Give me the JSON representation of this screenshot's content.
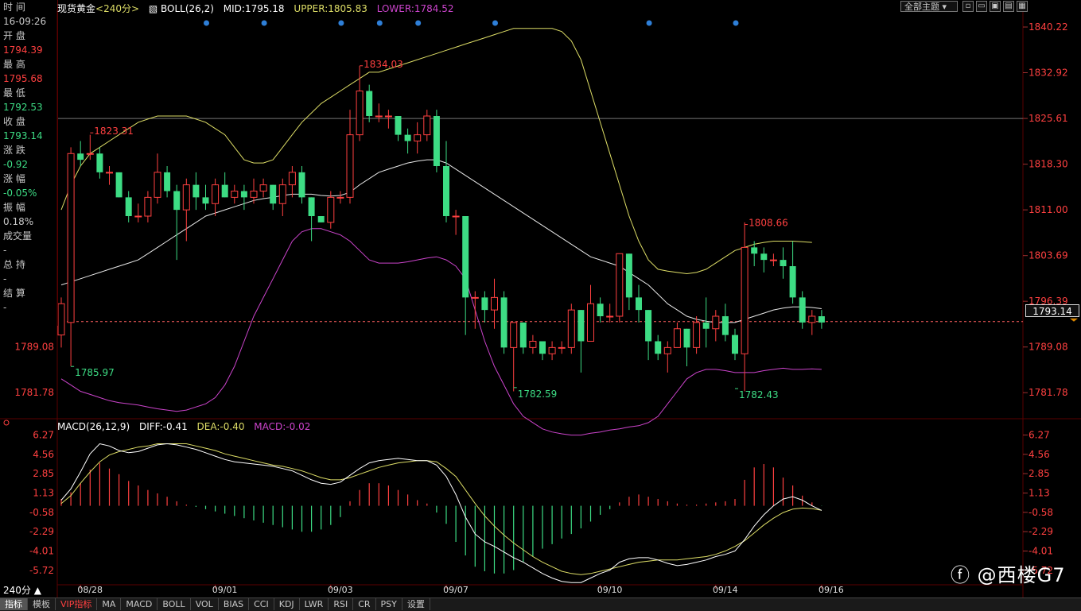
{
  "panel_labels": {
    "time_label": "时 间",
    "time_value": "16-09:26",
    "open_label": "开 盘",
    "open_value": "1794.39",
    "high_label": "最 高",
    "high_value": "1795.68",
    "low_label": "最 低",
    "low_value": "1792.53",
    "close_label": "收 盘",
    "close_value": "1793.14",
    "change_label": "涨 跌",
    "change_value": "-0.92",
    "pct_label": "涨 幅",
    "pct_value": "-0.05%",
    "amp_label": "振 幅",
    "amp_value": "0.18%",
    "volume_label": "成交量",
    "volume_value": "-",
    "oi_label": "总 持",
    "oi_value": "-",
    "settle_label": "结 算",
    "settle_value": "-"
  },
  "header": {
    "symbol": "现货黄金",
    "period": "<240分>",
    "boll_label": "BOLL(26,2)",
    "mid": "MID:1795.18",
    "upper": "UPPER:1805.83",
    "lower": "LOWER:1784.52",
    "theme_button": "全部主题"
  },
  "macd_header": {
    "name": "MACD(26,12,9)",
    "diff": "DIFF:-0.41",
    "dea": "DEA:-0.40",
    "macd": "MACD:-0.02"
  },
  "current_price_box": "1793.14",
  "period_selector": "240分",
  "tabs": [
    "指标",
    "模板",
    "VIP指标",
    "MA",
    "MACD",
    "BOLL",
    "VOL",
    "BIAS",
    "CCI",
    "KDJ",
    "LWR",
    "RSI",
    "CR",
    "PSY",
    "设置"
  ],
  "watermark": "@西楼G7",
  "colors": {
    "up": "#ff4040",
    "down": "#3ddc84",
    "mid": "#e8e8e8",
    "upper": "#dddd66",
    "lower": "#cc44cc",
    "dea": "#dddd66",
    "diff": "#ffffff",
    "macd_pos": "#ff4040",
    "macd_neg": "#3ddc84"
  },
  "chart_data": [
    {
      "type": "candlestick",
      "y_ticks": [
        "1840.22",
        "1832.92",
        "1825.61",
        "1818.30",
        "1811.00",
        "1803.69",
        "1796.39",
        "1789.08",
        "1781.78"
      ],
      "ylim": [
        1778,
        1842
      ],
      "x_ticks": [
        "08/28",
        "09/01",
        "09/03",
        "09/07",
        "09/10",
        "09/14",
        "09/16"
      ],
      "x_tick_index": [
        2,
        16,
        28,
        40,
        56,
        68,
        79
      ],
      "price_labels": [
        {
          "text": "1823.31",
          "index": 3,
          "value": 1823.31,
          "kind": "high"
        },
        {
          "text": "1785.97",
          "index": 1,
          "value": 1785.97,
          "kind": "low"
        },
        {
          "text": "1834.03",
          "index": 31,
          "value": 1834.03,
          "kind": "high"
        },
        {
          "text": "1782.59",
          "index": 47,
          "value": 1782.59,
          "kind": "low"
        },
        {
          "text": "1808.66",
          "index": 71,
          "value": 1808.66,
          "kind": "high"
        },
        {
          "text": "1782.43",
          "index": 70,
          "value": 1782.43,
          "kind": "low"
        }
      ],
      "reference_price": 1825.61,
      "last_price": 1793.14,
      "signal_dots_index": [
        15,
        21,
        29,
        33,
        37,
        45,
        61,
        70
      ],
      "candles": [
        [
          1791,
          1796,
          1789,
          1797
        ],
        [
          1793,
          1820,
          1786,
          1821
        ],
        [
          1820,
          1819,
          1818,
          1822
        ],
        [
          1820,
          1820,
          1819,
          1823
        ],
        [
          1820,
          1817,
          1816,
          1821
        ],
        [
          1817,
          1817,
          1815,
          1818
        ],
        [
          1817,
          1813,
          1813,
          1817
        ],
        [
          1813,
          1810,
          1809,
          1814
        ],
        [
          1810,
          1810,
          1809,
          1812
        ],
        [
          1810,
          1813,
          1809,
          1814
        ],
        [
          1813,
          1817,
          1812,
          1820
        ],
        [
          1817,
          1814,
          1813,
          1818
        ],
        [
          1814,
          1811,
          1803,
          1815
        ],
        [
          1811,
          1815,
          1806,
          1816
        ],
        [
          1815,
          1813,
          1811,
          1817
        ],
        [
          1813,
          1812,
          1811,
          1815
        ],
        [
          1812,
          1815,
          1810,
          1816
        ],
        [
          1815,
          1813,
          1813,
          1817
        ],
        [
          1813,
          1814,
          1812,
          1815
        ],
        [
          1814,
          1813,
          1811,
          1815
        ],
        [
          1813,
          1814,
          1812,
          1816
        ],
        [
          1814,
          1815,
          1813,
          1816
        ],
        [
          1815,
          1812,
          1811,
          1815
        ],
        [
          1812,
          1815,
          1810,
          1816
        ],
        [
          1815,
          1817,
          1813,
          1818
        ],
        [
          1817,
          1813,
          1812,
          1818
        ],
        [
          1813,
          1810,
          1806,
          1813
        ],
        [
          1810,
          1809,
          1809,
          1810
        ],
        [
          1809,
          1813,
          1808,
          1814
        ],
        [
          1813,
          1813,
          1812,
          1814
        ],
        [
          1813,
          1823,
          1812,
          1827
        ],
        [
          1823,
          1830,
          1822,
          1834
        ],
        [
          1830,
          1826,
          1825,
          1831
        ],
        [
          1826,
          1826,
          1825,
          1828
        ],
        [
          1826,
          1826,
          1824,
          1827
        ],
        [
          1826,
          1823,
          1822,
          1826
        ],
        [
          1823,
          1822,
          1820,
          1824
        ],
        [
          1822,
          1823,
          1820,
          1825
        ],
        [
          1823,
          1826,
          1822,
          1827
        ],
        [
          1826,
          1818,
          1817,
          1827
        ],
        [
          1818,
          1810,
          1809,
          1822
        ],
        [
          1810,
          1810,
          1807,
          1811
        ],
        [
          1810,
          1797,
          1791,
          1810
        ],
        [
          1797,
          1797,
          1792,
          1798
        ],
        [
          1797,
          1795,
          1793,
          1798
        ],
        [
          1795,
          1797,
          1792,
          1800
        ],
        [
          1797,
          1789,
          1788,
          1798
        ],
        [
          1789,
          1793,
          1782,
          1793
        ],
        [
          1793,
          1789,
          1788,
          1793
        ],
        [
          1789,
          1790,
          1788,
          1791
        ],
        [
          1790,
          1788,
          1787,
          1790
        ],
        [
          1788,
          1789,
          1787,
          1790
        ],
        [
          1789,
          1789,
          1788,
          1790
        ],
        [
          1789,
          1795,
          1788,
          1796
        ],
        [
          1795,
          1790,
          1785,
          1795
        ],
        [
          1790,
          1796,
          1790,
          1799
        ],
        [
          1796,
          1794,
          1793,
          1797
        ],
        [
          1794,
          1794,
          1793,
          1796
        ],
        [
          1794,
          1804,
          1793,
          1804
        ],
        [
          1804,
          1797,
          1795,
          1804
        ],
        [
          1797,
          1795,
          1793,
          1799
        ],
        [
          1795,
          1790,
          1787,
          1795
        ],
        [
          1790,
          1788,
          1787,
          1791
        ],
        [
          1788,
          1789,
          1785,
          1790
        ],
        [
          1789,
          1792,
          1789,
          1793
        ],
        [
          1792,
          1789,
          1786,
          1792
        ],
        [
          1789,
          1793,
          1788,
          1794
        ],
        [
          1793,
          1792,
          1789,
          1797
        ],
        [
          1792,
          1794,
          1790,
          1795
        ],
        [
          1794,
          1791,
          1790,
          1796
        ],
        [
          1791,
          1788,
          1787,
          1792
        ],
        [
          1788,
          1805,
          1782,
          1809
        ],
        [
          1805,
          1804,
          1802,
          1806
        ],
        [
          1804,
          1803,
          1801,
          1805
        ],
        [
          1803,
          1803,
          1802,
          1804
        ],
        [
          1803,
          1802,
          1800,
          1805
        ],
        [
          1802,
          1797,
          1796,
          1806
        ],
        [
          1797,
          1793,
          1792,
          1798
        ],
        [
          1793,
          1794,
          1791,
          1795
        ],
        [
          1794,
          1793,
          1792,
          1795
        ]
      ],
      "boll_mid": [
        1799,
        1799.5,
        1800,
        1800.5,
        1801,
        1801.5,
        1802,
        1802.5,
        1803,
        1804,
        1805,
        1806,
        1807,
        1808,
        1809,
        1810,
        1810.5,
        1811,
        1811.5,
        1812,
        1812.5,
        1812.8,
        1813,
        1813.3,
        1813.5,
        1813.5,
        1813.5,
        1813.3,
        1813.2,
        1813.3,
        1813.8,
        1815,
        1816,
        1817,
        1817.5,
        1818,
        1818.5,
        1818.8,
        1819,
        1819,
        1818.5,
        1817.5,
        1816.5,
        1815.5,
        1814.5,
        1813.5,
        1812.5,
        1811.5,
        1810.5,
        1809.5,
        1808.5,
        1807.5,
        1806.5,
        1805.5,
        1804.5,
        1803.5,
        1803,
        1802.5,
        1802,
        1801,
        1800,
        1799,
        1797.5,
        1796,
        1795,
        1794,
        1793.5,
        1793.2,
        1793,
        1793,
        1793,
        1793.5,
        1794,
        1794.5,
        1795,
        1795.3,
        1795.5,
        1795.5,
        1795.4,
        1795.2
      ],
      "boll_upper": [
        1811,
        1815,
        1818,
        1820,
        1821,
        1822,
        1823,
        1824,
        1825,
        1825.5,
        1826,
        1826,
        1826,
        1826,
        1825.5,
        1825,
        1824,
        1823,
        1821,
        1819,
        1818.5,
        1818.5,
        1819,
        1821,
        1823,
        1825,
        1826.5,
        1828,
        1829,
        1830,
        1831,
        1832,
        1833,
        1833,
        1833.5,
        1834,
        1834.5,
        1835,
        1835.5,
        1836,
        1836.5,
        1837,
        1837.5,
        1838,
        1838.5,
        1839,
        1839.5,
        1840,
        1840,
        1840,
        1840,
        1840,
        1839.5,
        1838,
        1835,
        1830,
        1825,
        1820,
        1815,
        1810,
        1806,
        1803,
        1801.5,
        1801.2,
        1801,
        1800.8,
        1801,
        1801.5,
        1802.5,
        1803.5,
        1804.5,
        1805,
        1805.5,
        1805.8,
        1806,
        1806,
        1806,
        1805.9,
        1805.8
      ],
      "boll_lower": [
        1784,
        1783,
        1782,
        1781.5,
        1781,
        1780.5,
        1780.2,
        1780,
        1779.8,
        1779.5,
        1779.2,
        1779,
        1778.8,
        1779,
        1779.5,
        1780,
        1781,
        1783,
        1786,
        1790,
        1794,
        1797,
        1800,
        1803,
        1806,
        1807.5,
        1808,
        1808,
        1807.5,
        1807,
        1806,
        1804.5,
        1803,
        1802.5,
        1802.5,
        1802.5,
        1802.7,
        1803,
        1803.3,
        1803.5,
        1803,
        1802,
        1800,
        1795,
        1790,
        1786,
        1783,
        1780,
        1778,
        1777,
        1776,
        1775.5,
        1775.2,
        1775,
        1775,
        1775.3,
        1775.5,
        1775.8,
        1776,
        1776.3,
        1776.5,
        1777,
        1778,
        1780,
        1782,
        1784,
        1785,
        1785.5,
        1785.5,
        1785.3,
        1785,
        1785,
        1785,
        1785.3,
        1785.5,
        1785.7,
        1785.5,
        1785.5,
        1785.6,
        1785.5
      ]
    },
    {
      "type": "line",
      "name": "MACD(26,12,9)",
      "y_ticks": [
        "6.27",
        "4.56",
        "2.85",
        "1.13",
        "-0.58",
        "-2.29",
        "-4.01",
        "-5.72"
      ],
      "ylim": [
        -7,
        6.8
      ],
      "diff": [
        0.5,
        1.5,
        3,
        4.6,
        5.5,
        5.3,
        4.9,
        4.7,
        4.8,
        5.1,
        5.4,
        5.5,
        5.4,
        5.2,
        5.0,
        4.7,
        4.4,
        4.1,
        3.9,
        3.8,
        3.7,
        3.6,
        3.5,
        3.3,
        3.1,
        2.7,
        2.3,
        2.0,
        1.9,
        2.1,
        2.7,
        3.3,
        3.8,
        4.0,
        4.1,
        4.2,
        4.1,
        4.0,
        4.0,
        3.6,
        2.6,
        1.0,
        -1.0,
        -2.5,
        -3.2,
        -3.6,
        -4.1,
        -4.6,
        -5.0,
        -5.5,
        -6.0,
        -6.4,
        -6.7,
        -6.8,
        -6.8,
        -6.4,
        -6.0,
        -5.7,
        -5.0,
        -4.7,
        -4.6,
        -4.6,
        -4.8,
        -5.1,
        -5.3,
        -5.2,
        -5.0,
        -4.8,
        -4.5,
        -4.3,
        -4.0,
        -3.0,
        -1.8,
        -0.8,
        0,
        0.6,
        0.8,
        0.5,
        0,
        -0.41
      ],
      "dea": [
        0.2,
        0.9,
        2.0,
        3.0,
        3.9,
        4.5,
        4.8,
        5.0,
        5.2,
        5.3,
        5.5,
        5.5,
        5.5,
        5.5,
        5.3,
        5.1,
        4.9,
        4.6,
        4.4,
        4.2,
        4.0,
        3.8,
        3.6,
        3.5,
        3.3,
        3.1,
        2.8,
        2.5,
        2.3,
        2.3,
        2.5,
        2.8,
        3.1,
        3.4,
        3.6,
        3.8,
        3.9,
        4.0,
        4.0,
        3.9,
        3.3,
        2.6,
        1.4,
        0.2,
        -0.9,
        -1.8,
        -2.6,
        -3.3,
        -3.9,
        -4.5,
        -5.0,
        -5.4,
        -5.8,
        -6.0,
        -6.1,
        -6.0,
        -5.8,
        -5.6,
        -5.4,
        -5.2,
        -5.0,
        -4.9,
        -4.8,
        -4.8,
        -4.8,
        -4.7,
        -4.6,
        -4.5,
        -4.3,
        -4.0,
        -3.6,
        -3.1,
        -2.4,
        -1.7,
        -1.1,
        -0.6,
        -0.3,
        -0.2,
        -0.25,
        -0.4
      ],
      "macd": [
        0.6,
        1.2,
        2.0,
        3.2,
        3.8,
        3.3,
        2.8,
        2.2,
        1.8,
        1.4,
        1.1,
        0.8,
        0.4,
        0.1,
        -0.1,
        -0.3,
        -0.5,
        -0.7,
        -0.9,
        -1.1,
        -1.3,
        -1.5,
        -1.7,
        -1.9,
        -2.1,
        -2.3,
        -2.3,
        -2.1,
        -1.7,
        -1.0,
        0.4,
        1.4,
        2.0,
        2.0,
        1.8,
        1.4,
        1.0,
        0.5,
        0.2,
        -0.6,
        -1.6,
        -3.2,
        -4.4,
        -5.4,
        -5.8,
        -6.0,
        -6.0,
        -5.7,
        -5.0,
        -4.5,
        -3.8,
        -3.4,
        -2.9,
        -2.5,
        -2.0,
        -1.4,
        -0.8,
        -0.3,
        0.3,
        0.8,
        1.0,
        0.8,
        0.6,
        0.4,
        0.2,
        0.1,
        0.1,
        0.2,
        0.3,
        0.4,
        0.6,
        2.3,
        3.4,
        3.7,
        3.4,
        2.5,
        1.8,
        0.9,
        0.3,
        -0.02
      ]
    }
  ]
}
